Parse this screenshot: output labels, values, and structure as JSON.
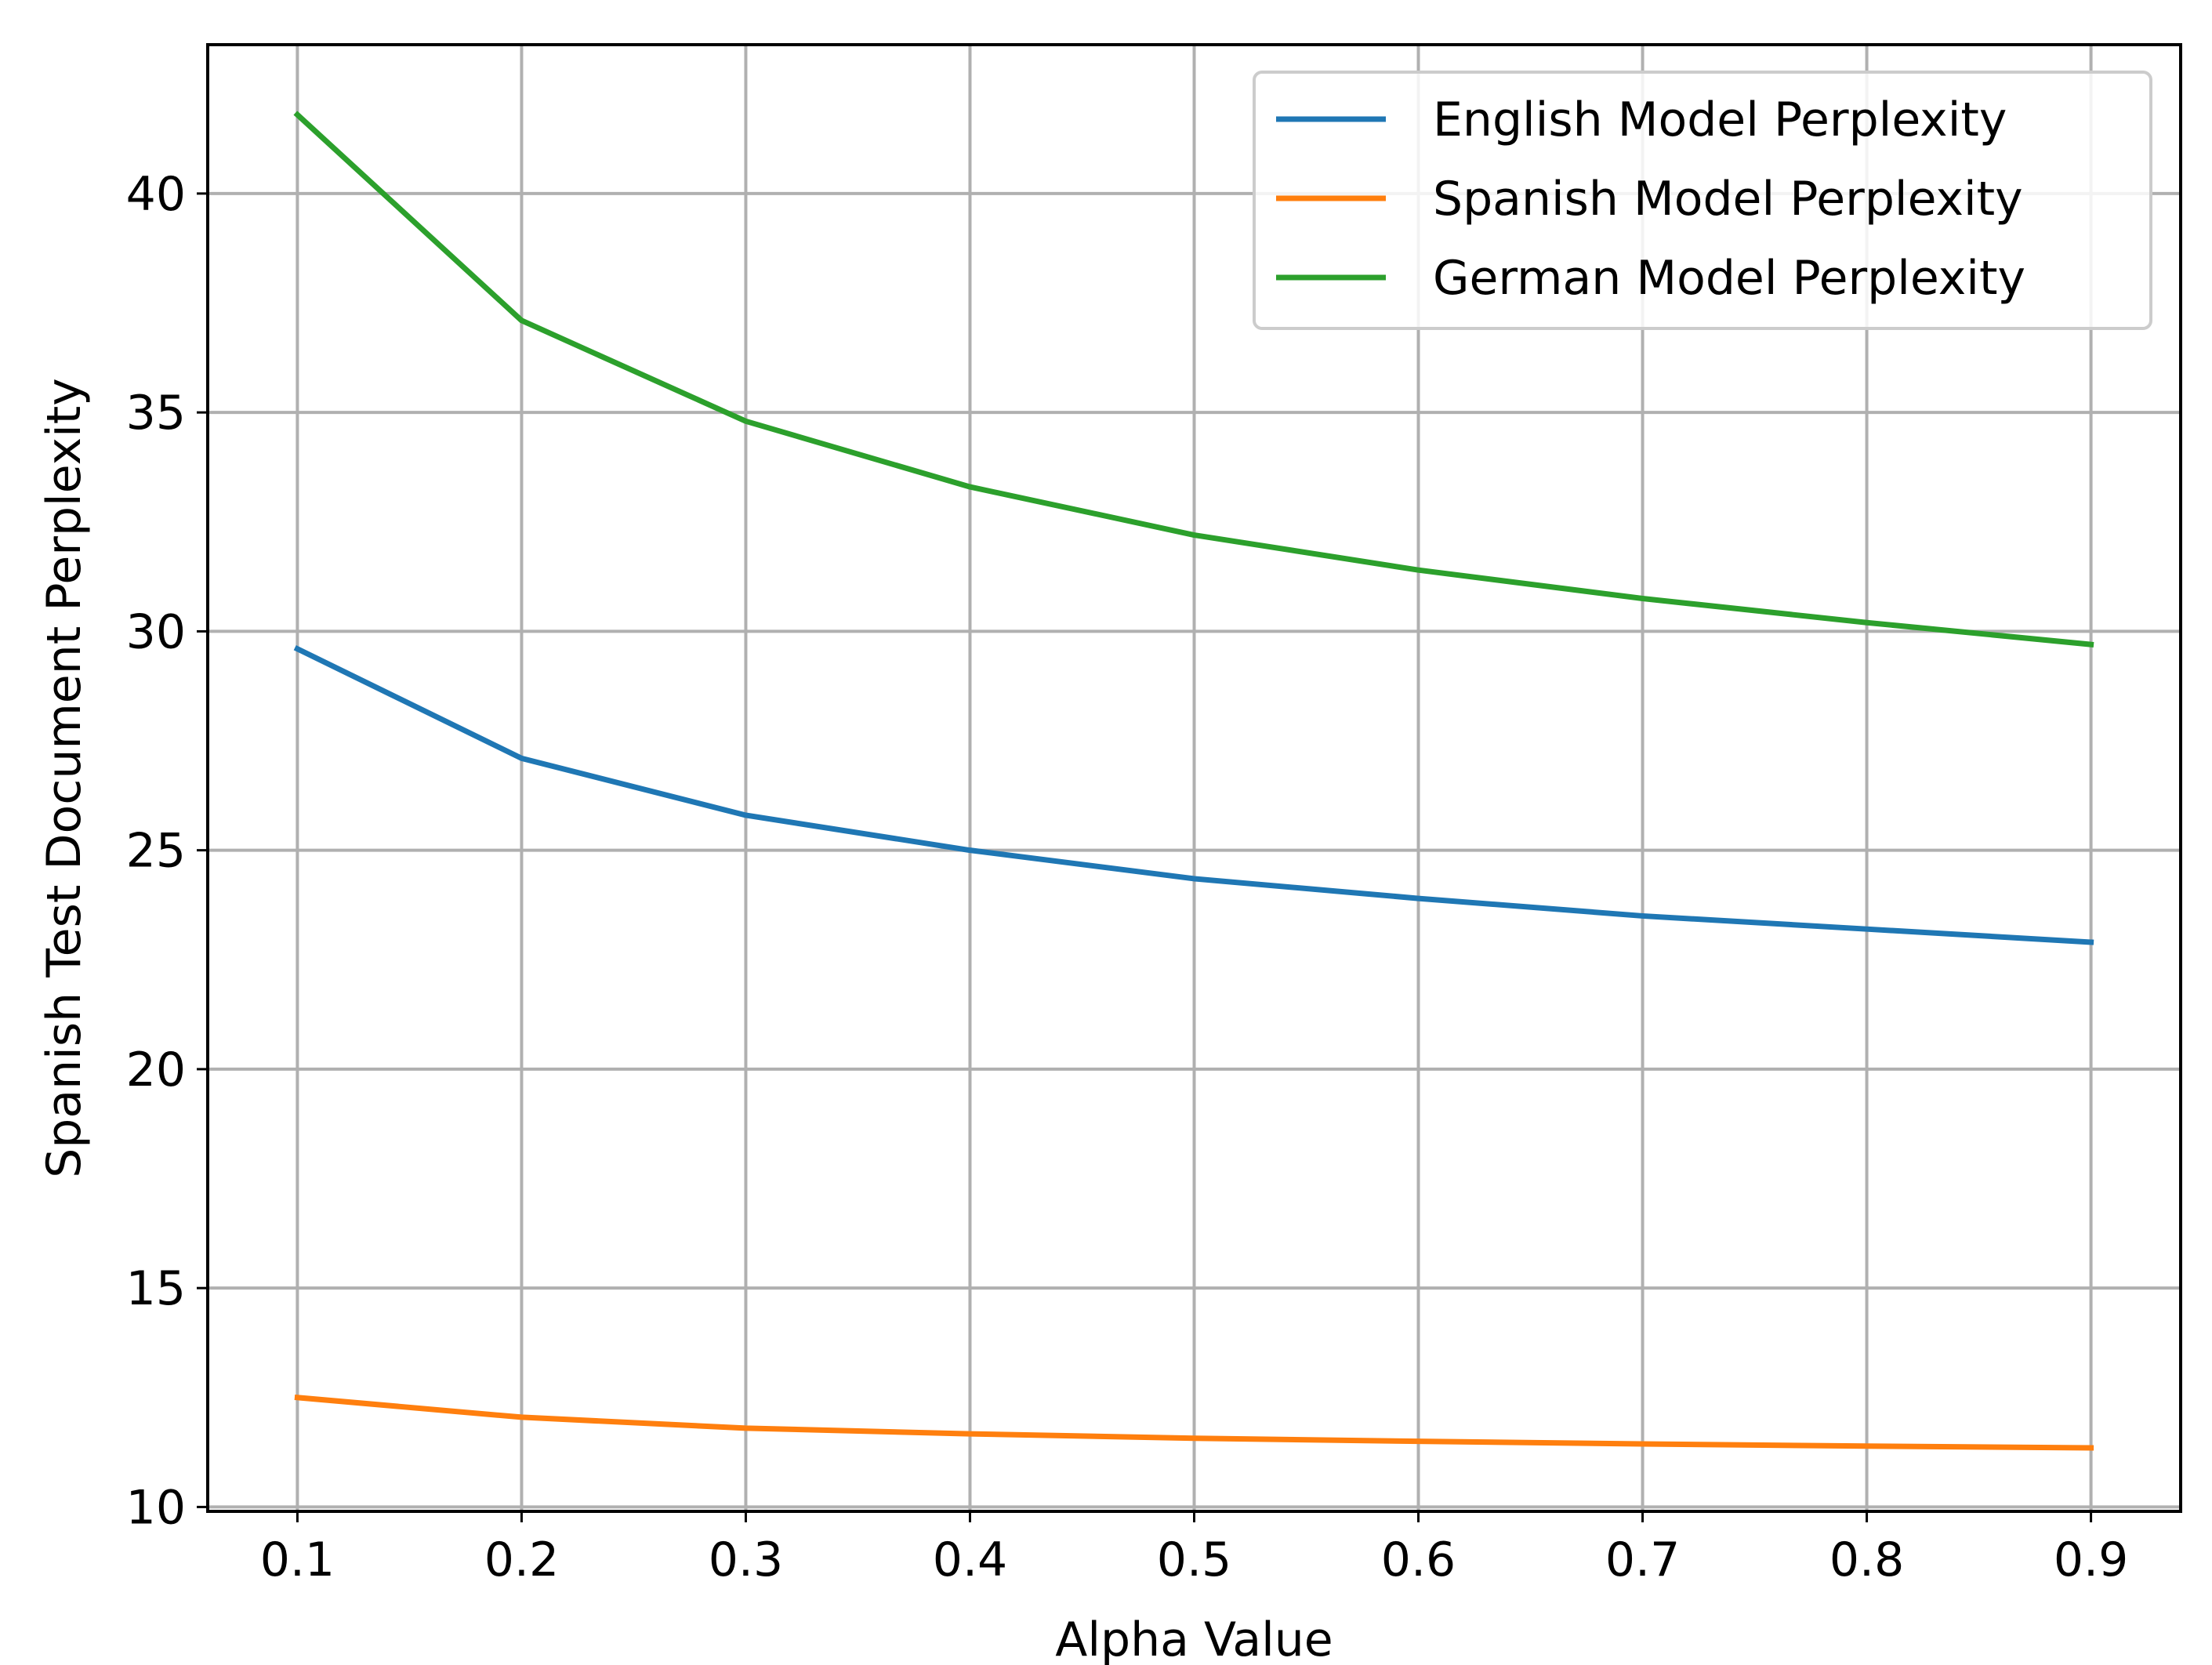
{
  "chart_data": {
    "type": "line",
    "title": "",
    "xlabel": "Alpha Value",
    "ylabel": "Spanish Test Document Perplexity",
    "x": [
      0.1,
      0.2,
      0.3,
      0.4,
      0.5,
      0.6,
      0.7,
      0.8,
      0.9
    ],
    "xlim": [
      0.06,
      0.94
    ],
    "ylim": [
      9.9,
      43.4
    ],
    "xticks": [
      "0.1",
      "0.2",
      "0.3",
      "0.4",
      "0.5",
      "0.6",
      "0.7",
      "0.8",
      "0.9"
    ],
    "yticks": [
      "10",
      "15",
      "20",
      "25",
      "30",
      "35",
      "40"
    ],
    "grid": true,
    "legend_position": "top-right",
    "series": [
      {
        "name": "English Model Perplexity",
        "color": "#1f77b4",
        "values": [
          29.6,
          27.1,
          25.8,
          25.0,
          24.35,
          23.9,
          23.5,
          23.2,
          22.9
        ]
      },
      {
        "name": "Spanish Model Perplexity",
        "color": "#ff7f0e",
        "values": [
          12.5,
          12.05,
          11.8,
          11.67,
          11.57,
          11.5,
          11.44,
          11.39,
          11.35
        ]
      },
      {
        "name": "German Model Perplexity",
        "color": "#2ca02c",
        "values": [
          41.8,
          37.1,
          34.8,
          33.3,
          32.2,
          31.4,
          30.75,
          30.2,
          29.7
        ]
      }
    ]
  }
}
